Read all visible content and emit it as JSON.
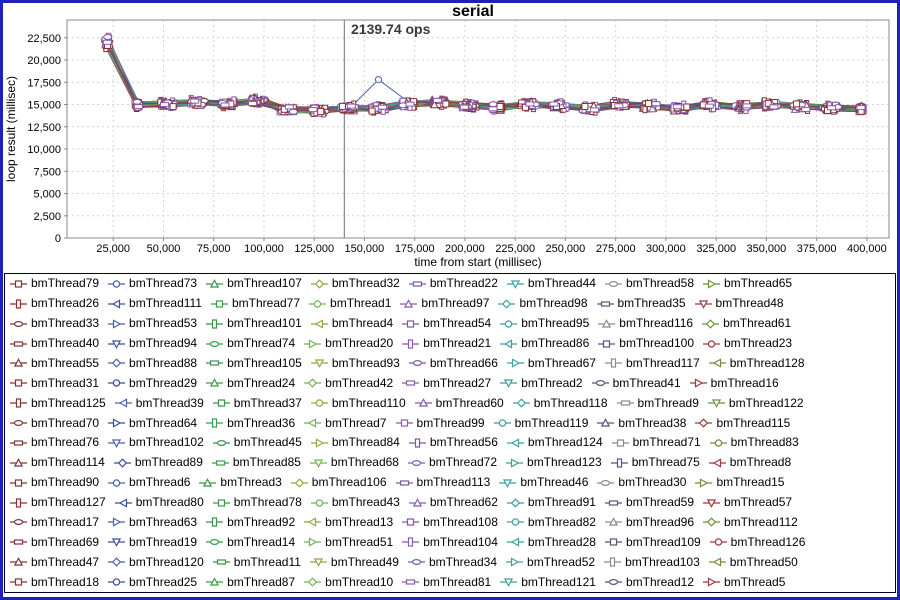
{
  "window": {
    "border_color": "#2020bf",
    "background": "#ffffff"
  },
  "chart": {
    "title": "serial",
    "annotation_label": "2139.74 ops",
    "x_axis_label": "time from start (millisec)",
    "y_axis_label": "loop result (millisec)"
  },
  "chart_data": {
    "type": "line",
    "title": "serial",
    "xlabel": "time from start (millisec)",
    "ylabel": "loop result (millisec)",
    "xlim": [
      2000,
      411000
    ],
    "ylim": [
      0,
      24500
    ],
    "x_ticks": [
      25000,
      50000,
      75000,
      100000,
      125000,
      150000,
      175000,
      200000,
      225000,
      250000,
      275000,
      300000,
      325000,
      350000,
      375000,
      400000
    ],
    "y_ticks": [
      0,
      2500,
      5000,
      7500,
      10000,
      12500,
      15000,
      17500,
      20000,
      22500
    ],
    "grid": "dashed",
    "legend_position": "bottom",
    "series_count": 128,
    "annotation": {
      "type": "vertical-line",
      "text": "2139.74 ops",
      "x": 140000
    },
    "x": [
      22000,
      37000,
      52000,
      67000,
      82000,
      97000,
      112000,
      127000,
      142000,
      157000,
      172000,
      187000,
      202000,
      217000,
      232000,
      247000,
      262000,
      277000,
      292000,
      307000,
      322000,
      337000,
      352000,
      367000,
      382000,
      397000
    ],
    "band_base_y": [
      22000,
      15000,
      15100,
      15250,
      15100,
      15400,
      14400,
      14350,
      14600,
      14550,
      15050,
      15200,
      14900,
      14700,
      15000,
      14850,
      14600,
      15000,
      14850,
      14600,
      14950,
      14750,
      15000,
      14800,
      14600,
      14500
    ],
    "band_note": "128 overlapping series follow band_base_y with small per-series jitter",
    "outlier": {
      "name": "bmThread73",
      "x": 157000,
      "y": 17800
    },
    "series_names": [
      "bmThread79",
      "bmThread73",
      "bmThread107",
      "bmThread32",
      "bmThread22",
      "bmThread44",
      "bmThread58",
      "bmThread65",
      "bmThread26",
      "bmThread111",
      "bmThread77",
      "bmThread1",
      "bmThread97",
      "bmThread98",
      "bmThread35",
      "bmThread48",
      "bmThread33",
      "bmThread53",
      "bmThread101",
      "bmThread4",
      "bmThread54",
      "bmThread95",
      "bmThread116",
      "bmThread61",
      "bmThread40",
      "bmThread94",
      "bmThread74",
      "bmThread20",
      "bmThread21",
      "bmThread86",
      "bmThread100",
      "bmThread23",
      "bmThread55",
      "bmThread88",
      "bmThread105",
      "bmThread93",
      "bmThread66",
      "bmThread67",
      "bmThread117",
      "bmThread128",
      "bmThread31",
      "bmThread29",
      "bmThread24",
      "bmThread42",
      "bmThread27",
      "bmThread2",
      "bmThread41",
      "bmThread16",
      "bmThread125",
      "bmThread39",
      "bmThread37",
      "bmThread110",
      "bmThread60",
      "bmThread118",
      "bmThread9",
      "bmThread122",
      "bmThread70",
      "bmThread64",
      "bmThread36",
      "bmThread7",
      "bmThread99",
      "bmThread119",
      "bmThread38",
      "bmThread115",
      "bmThread76",
      "bmThread102",
      "bmThread45",
      "bmThread84",
      "bmThread56",
      "bmThread124",
      "bmThread71",
      "bmThread83",
      "bmThread114",
      "bmThread89",
      "bmThread85",
      "bmThread68",
      "bmThread72",
      "bmThread123",
      "bmThread75",
      "bmThread8",
      "bmThread90",
      "bmThread6",
      "bmThread3",
      "bmThread106",
      "bmThread113",
      "bmThread46",
      "bmThread30",
      "bmThread15",
      "bmThread127",
      "bmThread80",
      "bmThread78",
      "bmThread43",
      "bmThread62",
      "bmThread91",
      "bmThread59",
      "bmThread57",
      "bmThread17",
      "bmThread63",
      "bmThread92",
      "bmThread13",
      "bmThread108",
      "bmThread82",
      "bmThread96",
      "bmThread112",
      "bmThread69",
      "bmThread19",
      "bmThread14",
      "bmThread51",
      "bmThread104",
      "bmThread28",
      "bmThread109",
      "bmThread126",
      "bmThread47",
      "bmThread120",
      "bmThread11",
      "bmThread49",
      "bmThread34",
      "bmThread52",
      "bmThread103",
      "bmThread50",
      "bmThread18",
      "bmThread25",
      "bmThread87",
      "bmThread10",
      "bmThread81",
      "bmThread121",
      "bmThread12",
      "bmThread5"
    ]
  },
  "style": {
    "grid_color": "#d4d4d4",
    "plot_border_color": "#888888",
    "annotation_line_color": "#707070",
    "annotation_text_color": "#3a3a3a",
    "legend_border_color": "#000033",
    "marker_fill": "#ffffff",
    "marker_shapes": [
      "square",
      "circle",
      "triangle-up",
      "diamond",
      "h-rect",
      "triangle-down",
      "h-ellipse",
      "triangle-right",
      "v-rect",
      "triangle-left"
    ],
    "palette": [
      "#7a3535",
      "#4a62a8",
      "#3e8e4e",
      "#9ba23c",
      "#7d58a4",
      "#3fa0a0",
      "#8a8a8a",
      "#6e8f3a",
      "#8b3030",
      "#3a4f9b",
      "#35a045",
      "#72b352",
      "#8a5bb0",
      "#3d9e9e",
      "#555577",
      "#9b3a3a"
    ]
  }
}
